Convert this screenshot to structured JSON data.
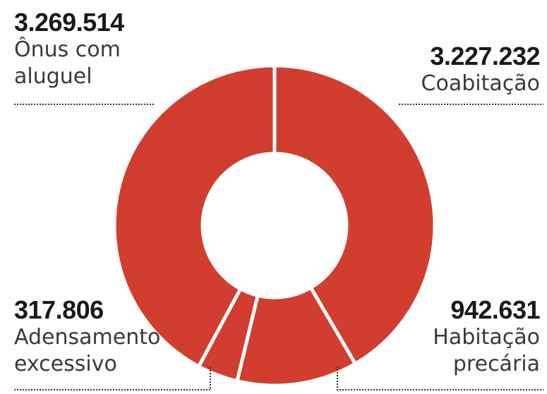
{
  "chart_data": {
    "type": "pie",
    "variant": "donut",
    "slices": [
      {
        "label": "Coabitação",
        "value": 3227232,
        "display": "3.227.232",
        "color": "#d13d2f"
      },
      {
        "label": "Habitação precária",
        "value": 942631,
        "display": "942.631",
        "color": "#d13d2f"
      },
      {
        "label": "Adensamento excessivo",
        "value": 317806,
        "display": "317.806",
        "color": "#d13d2f"
      },
      {
        "label": "Ônus com aluguel",
        "value": 3269514,
        "display": "3.269.514",
        "color": "#d13d2f"
      }
    ],
    "labels": {
      "onus": {
        "value": "3.269.514",
        "line1": "Ônus com",
        "line2": "aluguel"
      },
      "coabitacao": {
        "value": "3.227.232",
        "line1": "Coabitação"
      },
      "adensamento": {
        "value": "317.806",
        "line1": "Adensamento",
        "line2": "excessivo"
      },
      "habitacao": {
        "value": "942.631",
        "line1": "Habitação",
        "line2": "precária"
      }
    }
  }
}
